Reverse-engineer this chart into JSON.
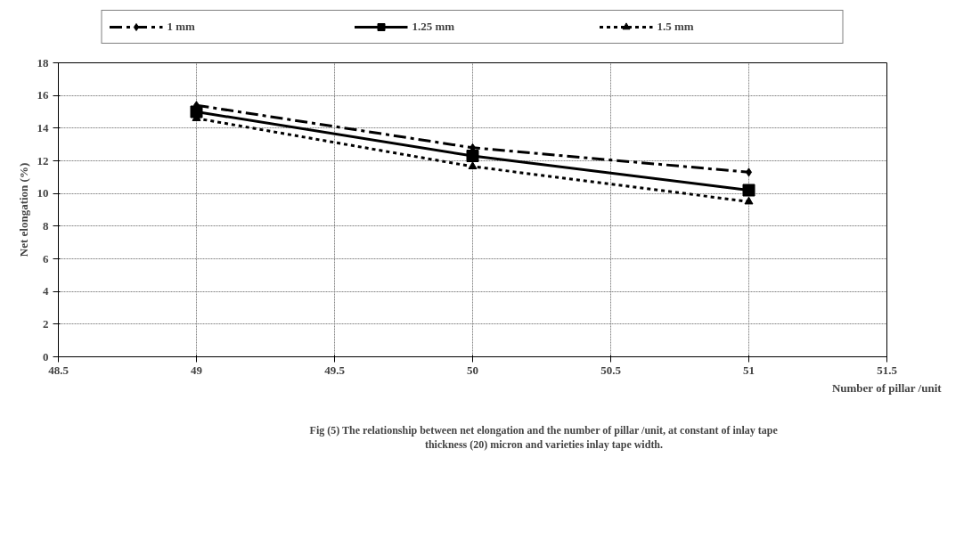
{
  "chart_data": {
    "type": "line",
    "xlabel": "Number of pillar /unit",
    "ylabel": "Net elongation (%)",
    "annotations": [
      "Fig (5) The relationship between net elongation and the number of pillar /unit, at constant of inlay tape thickness (20) micron and varieties inlay tape width."
    ],
    "x": [
      49,
      50,
      51
    ],
    "series": [
      {
        "name": "1 mm",
        "color": "#000000",
        "values": [
          15.4,
          12.8,
          11.3
        ],
        "marker": "diamond",
        "line_style": "dashdot"
      },
      {
        "name": "1.25 mm",
        "color": "#000000",
        "values": [
          15.0,
          12.3,
          10.2
        ],
        "marker": "square",
        "line_style": "solid"
      },
      {
        "name": "1.5 mm",
        "color": "#000000",
        "values": [
          14.6,
          11.65,
          9.5
        ],
        "marker": "triangle",
        "line_style": "dotted"
      }
    ],
    "xlim": [
      48.5,
      51.5
    ],
    "xticks": [
      48.5,
      49,
      49.5,
      50,
      50.5,
      51,
      51.5
    ],
    "ylim": [
      0,
      18
    ],
    "yticks": [
      0,
      2,
      4,
      6,
      8,
      10,
      12,
      14,
      16,
      18
    ],
    "grid": true,
    "legend": "top"
  }
}
